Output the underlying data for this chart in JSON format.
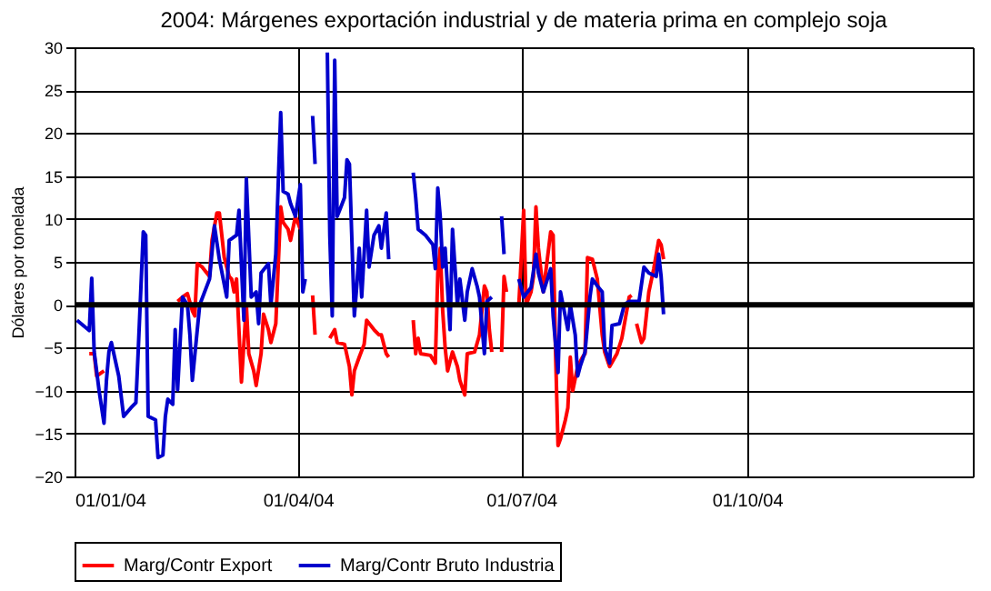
{
  "chart_data": {
    "type": "line",
    "title": "2004: Márgenes exportación industrial y de materia prima en complejo soja",
    "ylabel": "Dólares por tonelada",
    "xlim": [
      "2004-01-01",
      "2005-01-01"
    ],
    "xticks": [
      {
        "value": "2004-01-01",
        "label": "01/01/04"
      },
      {
        "value": "2004-04-01",
        "label": "01/04/04"
      },
      {
        "value": "2004-07-01",
        "label": "01/07/04"
      },
      {
        "value": "2004-10-01",
        "label": "01/10/04"
      },
      {
        "value": "2005-01-01",
        "label": null
      }
    ],
    "ylim": [
      -20,
      30
    ],
    "yticks": [
      -20,
      -15,
      -10,
      -5,
      0,
      5,
      10,
      15,
      20,
      25,
      30
    ],
    "grid": true,
    "legend": "bottom",
    "line_style": "solid",
    "marker": "none",
    "ref_lines": [
      {
        "axis": "y",
        "value": 0,
        "label": null,
        "color": "#000000"
      }
    ],
    "series": [
      {
        "name": "Marg/Contr Export",
        "color": "#ff0000",
        "x": [
          "2004-01-07",
          "2004-01-09",
          "2004-01-10",
          "2004-01-13",
          "2004-01-20",
          "2004-02-12",
          "2004-02-14",
          "2004-02-16",
          "2004-02-18",
          "2004-02-19",
          "2004-02-20",
          "2004-02-22",
          "2004-02-25",
          "2004-02-26",
          "2004-02-28",
          "2004-02-29",
          "2004-03-01",
          "2004-03-02",
          "2004-03-04",
          "2004-03-05",
          "2004-03-06",
          "2004-03-07",
          "2004-03-09",
          "2004-03-11",
          "2004-03-12",
          "2004-03-14",
          "2004-03-15",
          "2004-03-17",
          "2004-03-18",
          "2004-03-20",
          "2004-03-21",
          "2004-03-23",
          "2004-03-25",
          "2004-03-26",
          "2004-03-28",
          "2004-03-29",
          "2004-03-31",
          "2004-04-02",
          "2004-04-05",
          "2004-04-07",
          "2004-04-08",
          "2004-04-11",
          "2004-04-14",
          "2004-04-16",
          "2004-04-17",
          "2004-04-20",
          "2004-04-22",
          "2004-04-23",
          "2004-04-24",
          "2004-04-26",
          "2004-04-28",
          "2004-04-29",
          "2004-05-02",
          "2004-05-04",
          "2004-05-05",
          "2004-05-07",
          "2004-05-08",
          "2004-05-12",
          "2004-05-18",
          "2004-05-19",
          "2004-05-20",
          "2004-05-21",
          "2004-05-25",
          "2004-05-27",
          "2004-05-28",
          "2004-05-29",
          "2004-05-30",
          "2004-05-31",
          "2004-06-01",
          "2004-06-03",
          "2004-06-05",
          "2004-06-06",
          "2004-06-08",
          "2004-06-09",
          "2004-06-12",
          "2004-06-14",
          "2004-06-16",
          "2004-06-17",
          "2004-06-18",
          "2004-06-19",
          "2004-06-21",
          "2004-06-23",
          "2004-06-24",
          "2004-06-25",
          "2004-06-27",
          "2004-06-30",
          "2004-07-02",
          "2004-07-03",
          "2004-07-05",
          "2004-07-06",
          "2004-07-07",
          "2004-07-08",
          "2004-07-10",
          "2004-07-13",
          "2004-07-14",
          "2004-07-15",
          "2004-07-16",
          "2004-07-17",
          "2004-07-19",
          "2004-07-20",
          "2004-07-21",
          "2004-07-22",
          "2004-07-24",
          "2004-07-26",
          "2004-07-27",
          "2004-07-28",
          "2004-07-30",
          "2004-08-01",
          "2004-08-03",
          "2004-08-04",
          "2004-08-06",
          "2004-08-09",
          "2004-08-11",
          "2004-08-14",
          "2004-08-15",
          "2004-08-16",
          "2004-08-17",
          "2004-08-19",
          "2004-08-20",
          "2004-08-22",
          "2004-08-24",
          "2004-08-26",
          "2004-08-27",
          "2004-08-28"
        ],
        "values": [
          -5.7,
          -5.7,
          -8.3,
          -7.7,
          null,
          0.4,
          0.9,
          1.3,
          -0.7,
          -1.3,
          4.8,
          4.4,
          3.3,
          7.5,
          10.7,
          10.7,
          8.1,
          5.5,
          3.3,
          3,
          1.5,
          3,
          -9,
          0,
          -5.7,
          -7.7,
          -9.4,
          -5.7,
          -1.1,
          -2.9,
          -4.4,
          -2.2,
          11.4,
          9.6,
          8.8,
          7.5,
          10.3,
          8.8,
          null,
          1.1,
          -3.5,
          null,
          -3.9,
          -2.9,
          -4.4,
          -4.6,
          -7.2,
          -10.5,
          -7.7,
          -6.1,
          -4.6,
          -1.8,
          -2.9,
          -3.5,
          -3.5,
          -5.7,
          -6.1,
          null,
          -1.8,
          -5.7,
          -3.9,
          -5.7,
          -5.9,
          -6.8,
          3.7,
          6.6,
          -0.7,
          -5,
          -7.7,
          -5.5,
          -7.2,
          -8.8,
          -10.5,
          -5.7,
          -5.5,
          -3.5,
          2.2,
          1.5,
          -2.9,
          -5.5,
          null,
          -5.5,
          3.3,
          1.5,
          null,
          -0.2,
          11,
          0,
          1.5,
          3.3,
          11.4,
          6.6,
          1.5,
          8.5,
          8.1,
          -5.7,
          -16.4,
          -15.6,
          -13.4,
          -12,
          -6.1,
          -10,
          -7.2,
          -6.1,
          -5.7,
          5.5,
          5.3,
          3,
          -3.5,
          -5.5,
          -7.2,
          -5.7,
          -3.9,
          0.9,
          1.1,
          null,
          -2.2,
          -4.4,
          -3.9,
          1.5,
          4.2,
          7.5,
          7,
          5.3
        ]
      },
      {
        "name": "Marg/Contr Bruto Industria",
        "color": "#0000cc",
        "x": [
          "2004-01-02",
          "2004-01-07",
          "2004-01-08",
          "2004-01-09",
          "2004-01-11",
          "2004-01-13",
          "2004-01-14",
          "2004-01-15",
          "2004-01-16",
          "2004-01-19",
          "2004-01-21",
          "2004-01-24",
          "2004-01-26",
          "2004-01-27",
          "2004-01-29",
          "2004-01-30",
          "2004-01-31",
          "2004-02-03",
          "2004-02-04",
          "2004-02-06",
          "2004-02-07",
          "2004-02-08",
          "2004-02-10",
          "2004-02-11",
          "2004-02-12",
          "2004-02-14",
          "2004-02-16",
          "2004-02-17",
          "2004-02-18",
          "2004-02-21",
          "2004-02-25",
          "2004-02-27",
          "2004-02-29",
          "2004-03-03",
          "2004-03-04",
          "2004-03-07",
          "2004-03-08",
          "2004-03-10",
          "2004-03-11",
          "2004-03-13",
          "2004-03-15",
          "2004-03-16",
          "2004-03-17",
          "2004-03-20",
          "2004-03-21",
          "2004-03-23",
          "2004-03-25",
          "2004-03-26",
          "2004-03-28",
          "2004-03-29",
          "2004-03-31",
          "2004-04-02",
          "2004-04-03",
          "2004-04-04",
          "2004-04-06",
          "2004-04-07",
          "2004-04-08",
          "2004-04-10",
          "2004-04-13",
          "2004-04-14",
          "2004-04-15",
          "2004-04-16",
          "2004-04-17",
          "2004-04-18",
          "2004-04-20",
          "2004-04-21",
          "2004-04-22",
          "2004-04-24",
          "2004-04-25",
          "2004-04-26",
          "2004-04-27",
          "2004-04-29",
          "2004-04-30",
          "2004-05-02",
          "2004-05-04",
          "2004-05-05",
          "2004-05-07",
          "2004-05-08",
          "2004-05-12",
          "2004-05-18",
          "2004-05-19",
          "2004-05-20",
          "2004-05-23",
          "2004-05-26",
          "2004-05-27",
          "2004-05-28",
          "2004-05-29",
          "2004-05-30",
          "2004-05-31",
          "2004-06-02",
          "2004-06-03",
          "2004-06-05",
          "2004-06-06",
          "2004-06-08",
          "2004-06-09",
          "2004-06-11",
          "2004-06-13",
          "2004-06-14",
          "2004-06-16",
          "2004-06-17",
          "2004-06-19",
          "2004-06-21",
          "2004-06-23",
          "2004-06-24",
          "2004-06-27",
          "2004-06-30",
          "2004-07-02",
          "2004-07-05",
          "2004-07-07",
          "2004-07-08",
          "2004-07-10",
          "2004-07-13",
          "2004-07-14",
          "2004-07-16",
          "2004-07-17",
          "2004-07-18",
          "2004-07-20",
          "2004-07-21",
          "2004-07-23",
          "2004-07-24",
          "2004-07-25",
          "2004-07-27",
          "2004-07-29",
          "2004-07-30",
          "2004-08-01",
          "2004-08-03",
          "2004-08-04",
          "2004-08-06",
          "2004-08-07",
          "2004-08-10",
          "2004-08-12",
          "2004-08-14",
          "2004-08-18",
          "2004-08-20",
          "2004-08-22",
          "2004-08-25",
          "2004-08-26",
          "2004-08-27",
          "2004-08-28"
        ],
        "values": [
          -1.8,
          -3,
          3.1,
          -5.5,
          -10,
          -13.8,
          -8.8,
          -5.5,
          -4.4,
          -8.3,
          -13,
          -12,
          -11.4,
          -5,
          8.5,
          8.1,
          -13,
          -13.4,
          -17.8,
          -17.5,
          -13,
          -11,
          -11.6,
          -2.9,
          -9.9,
          0.9,
          0,
          -3.5,
          -8.8,
          0,
          3,
          9.2,
          5.3,
          0.9,
          7.5,
          8.1,
          11,
          -1.8,
          14.7,
          0.9,
          1.5,
          -2.2,
          3.7,
          4.8,
          0,
          5.9,
          22.4,
          13.2,
          12.9,
          11.8,
          10.3,
          14,
          1.5,
          3,
          null,
          22,
          16.4,
          null,
          29.4,
          8.1,
          -1.3,
          28.5,
          10.3,
          11,
          12.5,
          16.9,
          16.4,
          -1.3,
          2.2,
          6.6,
          0.9,
          11,
          4.4,
          8.1,
          9.2,
          6.6,
          10.7,
          5.3,
          null,
          15.4,
          12.5,
          8.8,
          8.1,
          7,
          4.2,
          13.6,
          10.3,
          4.4,
          6.6,
          -2.9,
          8.8,
          0,
          3,
          -1.8,
          1.5,
          4.2,
          2.2,
          0.9,
          -5.7,
          0.4,
          0.9,
          null,
          10.3,
          5.9,
          null,
          3,
          0.9,
          2,
          5.9,
          3.7,
          1.5,
          4.2,
          -1.3,
          -7.9,
          1.5,
          0,
          -2.9,
          0,
          -3.5,
          -8.3,
          -7.2,
          -5.5,
          0.9,
          3,
          2.2,
          1.5,
          -5,
          -6.8,
          -2.4,
          -2.2,
          0,
          0.4,
          0.4,
          4.4,
          3.7,
          3.3,
          5.9,
          3.3,
          -1.1
        ]
      }
    ]
  }
}
